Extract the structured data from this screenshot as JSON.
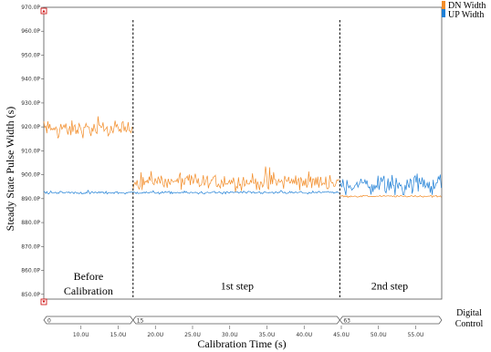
{
  "chart_data": {
    "type": "line",
    "title": "",
    "xlabel": "Calibration Time (s)",
    "ylabel": "Steady State Pulse Width (s)",
    "xlim": [
      5,
      58.5
    ],
    "ylim": [
      848,
      970
    ],
    "x_unit": "µs",
    "y_unit": "ps",
    "x_ticks": [
      "10.0U",
      "15.0U",
      "20.0U",
      "25.0U",
      "30.0U",
      "35.0U",
      "40.0U",
      "45.0U",
      "50.0U",
      "55.0U"
    ],
    "x_tick_values": [
      10,
      15,
      20,
      25,
      30,
      35,
      40,
      45,
      50,
      55
    ],
    "y_ticks": [
      "850.0P",
      "860.0P",
      "870.0P",
      "880.0P",
      "890.0P",
      "900.0P",
      "910.0P",
      "920.0P",
      "930.0P",
      "940.0P",
      "950.0P",
      "960.0P",
      "970.0P"
    ],
    "y_tick_values": [
      850,
      860,
      870,
      880,
      890,
      900,
      910,
      920,
      930,
      940,
      950,
      960,
      970
    ],
    "grid": false,
    "legend_position": "top-right",
    "series": [
      {
        "name": "DN Width",
        "color": "#F28C28",
        "segments": [
          {
            "x_start": 5,
            "x_end": 17,
            "mean": 919,
            "amplitude": 5
          },
          {
            "x_start": 17,
            "x_end": 44.8,
            "mean": 897,
            "amplitude": 5
          },
          {
            "x_start": 44.8,
            "x_end": 58.5,
            "mean": 891,
            "amplitude": 0.6
          }
        ]
      },
      {
        "name": "UP Width",
        "color": "#1E7FD6",
        "segments": [
          {
            "x_start": 5,
            "x_end": 44.8,
            "mean": 892.5,
            "amplitude": 0.8
          },
          {
            "x_start": 44.8,
            "x_end": 58.5,
            "mean": 896,
            "amplitude": 6
          }
        ]
      }
    ],
    "phase_dividers": [
      17,
      44.8
    ],
    "annotations": [
      {
        "text": "Before\nCalibration",
        "x": 11,
        "y": 856
      },
      {
        "text": "1st step",
        "x": 31,
        "y": 852
      },
      {
        "text": "2nd step",
        "x": 51.5,
        "y": 852
      }
    ],
    "digital_control": {
      "label": "Digital\nControl",
      "values": [
        {
          "text": "0",
          "x_start": 5,
          "x_end": 17
        },
        {
          "text": "15",
          "x_start": 17,
          "x_end": 44.8
        },
        {
          "text": "63",
          "x_start": 44.8,
          "x_end": 58.5
        }
      ]
    }
  }
}
